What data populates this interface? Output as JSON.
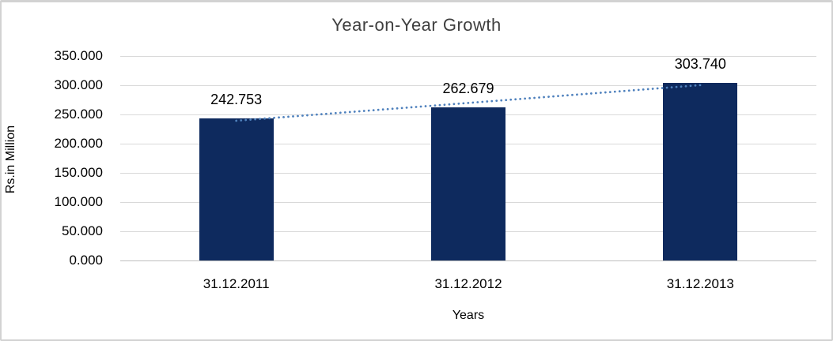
{
  "chart": {
    "title": "Year-on-Year Growth",
    "xlabel": "Years",
    "ylabel": "Rs.in Million"
  },
  "chart_data": {
    "type": "bar",
    "title": "Year-on-Year Growth",
    "xlabel": "Years",
    "ylabel": "Rs.in Million",
    "categories": [
      "31.12.2011",
      "31.12.2012",
      "31.12.2013"
    ],
    "values": [
      242.753,
      262.679,
      303.74
    ],
    "value_labels": [
      "242.753",
      "262.679",
      "303.740"
    ],
    "ylim": [
      0,
      350
    ],
    "ytick_step": 50,
    "ytick_labels": [
      "0.000",
      "50.000",
      "100.000",
      "150.000",
      "200.000",
      "250.000",
      "300.000",
      "350.000"
    ],
    "grid": true,
    "legend": false,
    "trendline": {
      "type": "linear",
      "style": "dotted"
    },
    "colors": {
      "bar": "#0e2a5e",
      "trendline": "#4f81bd",
      "gridline": "#d9d9d9",
      "axis_line": "#bfbfbf",
      "title_text": "#3f3f3f",
      "label_text": "#000000",
      "frame_border": "#d2d2d2"
    }
  }
}
